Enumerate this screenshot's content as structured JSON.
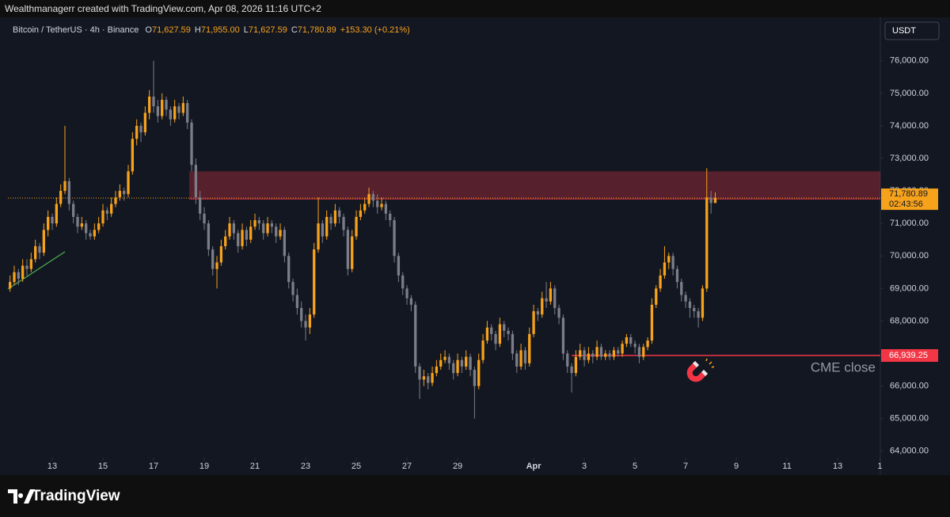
{
  "top_bar": "Wealthmanagerr created with TradingView.com, Apr 08, 2026 11:16 UTC+2",
  "logo": "TradingView",
  "currency_button": "USDT",
  "chart_data": {
    "type": "candlestick",
    "title": "Bitcoin / TetherUS · 4h · Binance",
    "ohlc_header": [
      {
        "key": "O",
        "value": "71,627.59"
      },
      {
        "key": "H",
        "value": "71,955.00"
      },
      {
        "key": "L",
        "value": "71,627.59"
      },
      {
        "key": "C",
        "value": "71,780.89"
      }
    ],
    "change": "+153.30 (+0.21%)",
    "up_color": "#f7a21b",
    "down_color": "#7b7e89",
    "candles": [
      [
        69000,
        69400,
        68900,
        69200
      ],
      [
        69200,
        69700,
        69100,
        69500
      ],
      [
        69500,
        69600,
        69100,
        69300
      ],
      [
        69300,
        69900,
        69200,
        69700
      ],
      [
        69700,
        69900,
        69400,
        69600
      ],
      [
        69600,
        70100,
        69500,
        69900
      ],
      [
        69900,
        70500,
        69800,
        70300
      ],
      [
        70300,
        70400,
        69900,
        70100
      ],
      [
        70100,
        71000,
        70000,
        70800
      ],
      [
        70800,
        71400,
        70600,
        71200
      ],
      [
        71200,
        71300,
        70800,
        71000
      ],
      [
        71000,
        71800,
        70900,
        71600
      ],
      [
        71600,
        72200,
        71500,
        72000
      ],
      [
        72000,
        74000,
        71900,
        72300
      ],
      [
        72300,
        72400,
        71400,
        71600
      ],
      [
        71600,
        71700,
        71000,
        71200
      ],
      [
        71200,
        71300,
        70700,
        70900
      ],
      [
        70900,
        71200,
        70800,
        71000
      ],
      [
        71000,
        71100,
        70500,
        70700
      ],
      [
        70700,
        70800,
        70500,
        70600
      ],
      [
        70600,
        71000,
        70500,
        70800
      ],
      [
        70800,
        71200,
        70700,
        71000
      ],
      [
        71000,
        71600,
        70900,
        71400
      ],
      [
        71400,
        71500,
        71100,
        71300
      ],
      [
        71300,
        71800,
        71200,
        71600
      ],
      [
        71600,
        72000,
        71500,
        71800
      ],
      [
        71800,
        72200,
        71700,
        72000
      ],
      [
        72000,
        72100,
        71700,
        71900
      ],
      [
        71900,
        72800,
        71800,
        72600
      ],
      [
        72600,
        73800,
        72500,
        73600
      ],
      [
        73600,
        74200,
        73400,
        74000
      ],
      [
        74000,
        74100,
        73500,
        73800
      ],
      [
        73800,
        74600,
        73700,
        74400
      ],
      [
        74400,
        75100,
        74200,
        74900
      ],
      [
        74900,
        76000,
        74400,
        74600
      ],
      [
        74600,
        74800,
        74100,
        74300
      ],
      [
        74300,
        75000,
        74200,
        74800
      ],
      [
        74800,
        74900,
        74300,
        74500
      ],
      [
        74500,
        74600,
        74000,
        74200
      ],
      [
        74200,
        74800,
        74100,
        74600
      ],
      [
        74600,
        74700,
        74200,
        74400
      ],
      [
        74400,
        74900,
        74300,
        74700
      ],
      [
        74700,
        74800,
        73900,
        74100
      ],
      [
        74100,
        74200,
        72600,
        72800
      ],
      [
        72800,
        73000,
        71600,
        71800
      ],
      [
        71800,
        72000,
        71100,
        71300
      ],
      [
        71300,
        71500,
        70800,
        71000
      ],
      [
        71000,
        71100,
        70000,
        70200
      ],
      [
        70200,
        70300,
        69400,
        69600
      ],
      [
        69600,
        70000,
        69000,
        69800
      ],
      [
        69800,
        70500,
        69700,
        70300
      ],
      [
        70300,
        70800,
        70200,
        70600
      ],
      [
        70600,
        71200,
        70500,
        71000
      ],
      [
        71000,
        71100,
        70500,
        70700
      ],
      [
        70700,
        70800,
        70100,
        70300
      ],
      [
        70300,
        71000,
        70200,
        70800
      ],
      [
        70800,
        70900,
        70300,
        70500
      ],
      [
        70500,
        71100,
        70400,
        70900
      ],
      [
        70900,
        71300,
        70800,
        71100
      ],
      [
        71100,
        71200,
        70800,
        71000
      ],
      [
        71000,
        71100,
        70500,
        70700
      ],
      [
        70700,
        71200,
        70600,
        71000
      ],
      [
        71000,
        71100,
        70700,
        70900
      ],
      [
        70900,
        71000,
        70400,
        70600
      ],
      [
        70600,
        71000,
        70500,
        70800
      ],
      [
        70800,
        70900,
        69800,
        70000
      ],
      [
        70000,
        70100,
        69000,
        69200
      ],
      [
        69200,
        69300,
        68600,
        68800
      ],
      [
        68800,
        69000,
        68200,
        68400
      ],
      [
        68400,
        68600,
        67800,
        68000
      ],
      [
        68000,
        68200,
        67400,
        67800
      ],
      [
        67800,
        68400,
        67600,
        68200
      ],
      [
        68200,
        70400,
        68100,
        70200
      ],
      [
        70200,
        71800,
        70100,
        71000
      ],
      [
        71000,
        71100,
        70400,
        70600
      ],
      [
        70600,
        71400,
        70500,
        71200
      ],
      [
        71200,
        71300,
        70800,
        71000
      ],
      [
        71000,
        71600,
        70900,
        71400
      ],
      [
        71400,
        71500,
        71000,
        71200
      ],
      [
        71200,
        71300,
        70600,
        70800
      ],
      [
        70800,
        70900,
        69400,
        69600
      ],
      [
        69600,
        70800,
        69500,
        70600
      ],
      [
        70600,
        71400,
        70500,
        71200
      ],
      [
        71200,
        71600,
        71100,
        71400
      ],
      [
        71400,
        71800,
        71300,
        71600
      ],
      [
        71600,
        72100,
        71500,
        71900
      ],
      [
        71900,
        72000,
        71500,
        71700
      ],
      [
        71700,
        71900,
        71300,
        71500
      ],
      [
        71500,
        71800,
        71400,
        71600
      ],
      [
        71600,
        71700,
        71100,
        71300
      ],
      [
        71300,
        71400,
        70900,
        71100
      ],
      [
        71100,
        71200,
        69800,
        70000
      ],
      [
        70000,
        70100,
        69200,
        69400
      ],
      [
        69400,
        69500,
        68800,
        69000
      ],
      [
        69000,
        69100,
        68500,
        68700
      ],
      [
        68700,
        68800,
        68300,
        68500
      ],
      [
        68500,
        68600,
        66400,
        66600
      ],
      [
        66600,
        66700,
        65600,
        66200
      ],
      [
        66200,
        66500,
        66000,
        66300
      ],
      [
        66300,
        66400,
        65900,
        66100
      ],
      [
        66100,
        66600,
        66000,
        66400
      ],
      [
        66400,
        66800,
        66300,
        66600
      ],
      [
        66600,
        67000,
        66500,
        66800
      ],
      [
        66800,
        67100,
        66700,
        66900
      ],
      [
        66900,
        67000,
        66500,
        66700
      ],
      [
        66700,
        66800,
        66200,
        66400
      ],
      [
        66400,
        67000,
        66300,
        66800
      ],
      [
        66800,
        66900,
        66400,
        66600
      ],
      [
        66600,
        67100,
        66500,
        66900
      ],
      [
        66900,
        67000,
        66300,
        66500
      ],
      [
        66500,
        66600,
        65000,
        66000
      ],
      [
        66000,
        67000,
        65900,
        66800
      ],
      [
        66800,
        67600,
        66700,
        67400
      ],
      [
        67400,
        68000,
        67300,
        67800
      ],
      [
        67800,
        67900,
        67400,
        67600
      ],
      [
        67600,
        67700,
        67100,
        67300
      ],
      [
        67300,
        68100,
        67200,
        67900
      ],
      [
        67900,
        68000,
        67500,
        67700
      ],
      [
        67700,
        67800,
        67400,
        67600
      ],
      [
        67600,
        67700,
        66800,
        67000
      ],
      [
        67000,
        67100,
        66400,
        66600
      ],
      [
        66600,
        67300,
        66500,
        67100
      ],
      [
        67100,
        67200,
        66500,
        66700
      ],
      [
        66700,
        67800,
        66600,
        67600
      ],
      [
        67600,
        68500,
        67500,
        68300
      ],
      [
        68300,
        68400,
        68000,
        68200
      ],
      [
        68200,
        68900,
        68100,
        68700
      ],
      [
        68700,
        69200,
        68400,
        68600
      ],
      [
        68600,
        69200,
        68500,
        69000
      ],
      [
        69000,
        69100,
        68200,
        68400
      ],
      [
        68400,
        68500,
        67900,
        68100
      ],
      [
        68100,
        68200,
        66800,
        67000
      ],
      [
        67000,
        67100,
        66400,
        66600
      ],
      [
        66600,
        66700,
        65800,
        66400
      ],
      [
        66400,
        67100,
        66300,
        66900
      ],
      [
        66900,
        67300,
        66800,
        67100
      ],
      [
        67100,
        67200,
        66600,
        66800
      ],
      [
        66800,
        67200,
        66700,
        67000
      ],
      [
        67000,
        67100,
        66700,
        66900
      ],
      [
        66900,
        67400,
        66800,
        67200
      ],
      [
        67200,
        67300,
        66800,
        66900
      ],
      [
        66900,
        67100,
        66800,
        67000
      ],
      [
        67000,
        67100,
        66800,
        66900
      ],
      [
        66900,
        67200,
        66800,
        67100
      ],
      [
        67100,
        67200,
        66900,
        67000
      ],
      [
        67000,
        67400,
        66900,
        67300
      ],
      [
        67300,
        67600,
        67200,
        67500
      ],
      [
        67500,
        67600,
        67200,
        67300
      ],
      [
        67300,
        67400,
        67000,
        67200
      ],
      [
        67200,
        67300,
        66700,
        66900
      ],
      [
        66900,
        67300,
        66800,
        67200
      ],
      [
        67200,
        67500,
        67100,
        67400
      ],
      [
        67400,
        68700,
        67300,
        68500
      ],
      [
        68500,
        69100,
        68400,
        69000
      ],
      [
        69000,
        69600,
        68900,
        69400
      ],
      [
        69400,
        70300,
        69300,
        69800
      ],
      [
        69800,
        70100,
        69600,
        70000
      ],
      [
        70000,
        70100,
        69400,
        69600
      ],
      [
        69600,
        69700,
        69000,
        69200
      ],
      [
        69200,
        69300,
        68600,
        68800
      ],
      [
        68800,
        68900,
        68400,
        68600
      ],
      [
        68600,
        68700,
        68100,
        68400
      ],
      [
        68400,
        68500,
        68100,
        68300
      ],
      [
        68300,
        68400,
        67800,
        68100
      ],
      [
        68100,
        69100,
        68000,
        69000
      ],
      [
        69000,
        72700,
        68900,
        71800
      ],
      [
        71800,
        72000,
        71300,
        71627.59
      ],
      [
        71627.59,
        71955,
        71627.59,
        71780.89
      ]
    ],
    "xlim": [
      -0.5,
      206.1
    ],
    "xticks": [
      {
        "value": 10,
        "label": "13"
      },
      {
        "value": 22,
        "label": "15"
      },
      {
        "value": 34,
        "label": "17"
      },
      {
        "value": 46,
        "label": "19"
      },
      {
        "value": 58,
        "label": "21"
      },
      {
        "value": 70,
        "label": "23"
      },
      {
        "value": 82,
        "label": "25"
      },
      {
        "value": 94,
        "label": "27"
      },
      {
        "value": 106,
        "label": "29"
      },
      {
        "value": 124,
        "label": "Apr"
      },
      {
        "value": 136,
        "label": "3"
      },
      {
        "value": 148,
        "label": "5"
      },
      {
        "value": 160,
        "label": "7"
      },
      {
        "value": 172,
        "label": "9"
      },
      {
        "value": 184,
        "label": "11"
      },
      {
        "value": 196,
        "label": "13"
      },
      {
        "value": 206,
        "label": "1"
      }
    ],
    "ylim": [
      63800,
      76700
    ],
    "yticks": [
      {
        "value": 64000,
        "label": "64,000.00"
      },
      {
        "value": 65000,
        "label": "65,000.00"
      },
      {
        "value": 66000,
        "label": "66,000.00"
      },
      {
        "value": 67000,
        "label": "67,000.00"
      },
      {
        "value": 68000,
        "label": "68,000.00"
      },
      {
        "value": 69000,
        "label": "69,000.00"
      },
      {
        "value": 70000,
        "label": "70,000.00"
      },
      {
        "value": 71000,
        "label": "71,000.00"
      },
      {
        "value": 72000,
        "label": "72,000.00"
      },
      {
        "value": 73000,
        "label": "73,000.00"
      },
      {
        "value": 74000,
        "label": "74,000.00"
      },
      {
        "value": 75000,
        "label": "75,000.00"
      },
      {
        "value": 76000,
        "label": "76,000.00"
      }
    ],
    "grid": false,
    "last_price": {
      "value": 71780.89,
      "label": "71,780.89",
      "countdown": "02:43:56"
    },
    "resistance_zone": [
      71750,
      72600
    ],
    "cme_close": {
      "value": 66939.25,
      "label": "66,939.25",
      "text": "CME close"
    }
  }
}
